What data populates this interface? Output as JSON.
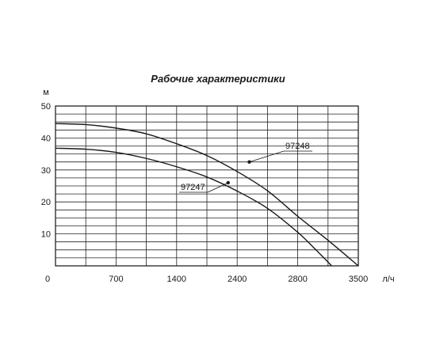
{
  "chart_data": {
    "type": "line",
    "title": "Рабочие характеристики",
    "ylabel": "м",
    "xlabel": "л/ч",
    "x_ticks": [
      "0",
      "700",
      "1400",
      "2400",
      "2800",
      "3500"
    ],
    "y_ticks": [
      "10",
      "20",
      "30",
      "40",
      "50"
    ],
    "ylim": [
      0,
      50
    ],
    "grid": true,
    "series": [
      {
        "name": "97248",
        "color": "#1a1a1a",
        "x_ticks_index": [
          0,
          0.5,
          1,
          1.5,
          2,
          2.5,
          3,
          3.5,
          4,
          4.5,
          5
        ],
        "y": [
          44.5,
          44.2,
          43.1,
          41.3,
          38.2,
          34.5,
          29.5,
          23.5,
          15.5,
          8.0,
          0
        ],
        "marker": {
          "x_ticks_index": 3.2,
          "y": 32.5
        }
      },
      {
        "name": "97247",
        "color": "#1a1a1a",
        "x_ticks_index": [
          0,
          0.5,
          1,
          1.5,
          2,
          2.5,
          3,
          3.5,
          4,
          4.3,
          4.56
        ],
        "y": [
          36.8,
          36.5,
          35.5,
          33.6,
          31.0,
          27.8,
          23.4,
          18.0,
          10.5,
          5.0,
          0
        ],
        "marker": {
          "x_ticks_index": 2.85,
          "y": 26.0
        }
      }
    ]
  }
}
